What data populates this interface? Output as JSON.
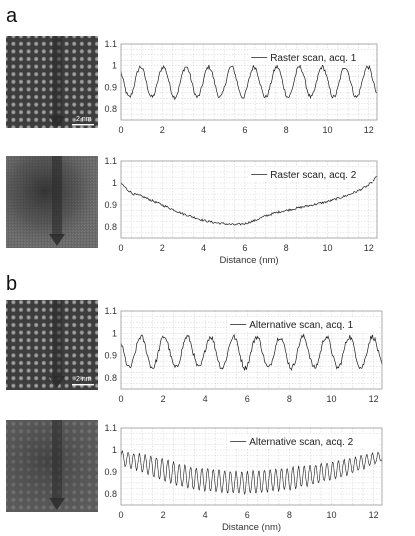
{
  "panels": [
    {
      "label": "a"
    },
    {
      "label": "b"
    }
  ],
  "scale_bar": {
    "label": "2 nm"
  },
  "chart_data": [
    {
      "type": "line",
      "panel": "a",
      "legend": "Raster scan, acq. 1",
      "legend_placement": "top-right",
      "xlim": [
        0,
        12.4
      ],
      "ylim": [
        0.75,
        1.1
      ],
      "xticks": [
        0,
        2,
        4,
        6,
        8,
        10,
        12
      ],
      "yticks": [
        0.8,
        0.9,
        1,
        1.1
      ],
      "xlabel": "",
      "grid": true,
      "pattern": "periodic",
      "mean": 0.925,
      "amplitude": 0.07,
      "period": 1.1,
      "phase": 0.95,
      "noise": 0.01
    },
    {
      "type": "line",
      "panel": "a",
      "legend": "Raster scan, acq. 2",
      "legend_placement": "top-right",
      "xlim": [
        0,
        12.4
      ],
      "ylim": [
        0.75,
        1.1
      ],
      "xticks": [
        0,
        2,
        4,
        6,
        8,
        10,
        12
      ],
      "yticks": [
        0.8,
        0.9,
        1,
        1.1
      ],
      "xlabel": "Distance (nm)",
      "grid": true,
      "pattern": "trend",
      "noise": 0.005,
      "x": [
        0,
        0.3,
        0.6,
        1,
        1.5,
        2,
        2.5,
        3,
        3.5,
        4,
        4.5,
        5,
        5.5,
        6,
        6.5,
        7,
        7.5,
        8,
        8.5,
        9,
        9.5,
        10,
        10.5,
        11,
        11.5,
        12,
        12.4
      ],
      "y": [
        1.0,
        0.97,
        0.95,
        0.94,
        0.92,
        0.9,
        0.88,
        0.86,
        0.845,
        0.83,
        0.82,
        0.815,
        0.81,
        0.815,
        0.83,
        0.85,
        0.865,
        0.875,
        0.885,
        0.895,
        0.905,
        0.915,
        0.93,
        0.945,
        0.965,
        0.99,
        1.03
      ]
    },
    {
      "type": "line",
      "panel": "b",
      "legend": "Alternative scan, acq. 1",
      "legend_placement": "top-right",
      "xlim": [
        0,
        12.4
      ],
      "ylim": [
        0.75,
        1.1
      ],
      "xticks": [
        0,
        2,
        4,
        6,
        8,
        10,
        12
      ],
      "yticks": [
        0.8,
        0.9,
        1,
        1.1
      ],
      "xlabel": "",
      "grid": true,
      "pattern": "periodic",
      "mean": 0.915,
      "amplitude": 0.07,
      "period": 1.1,
      "phase": 0.95,
      "noise": 0.012
    },
    {
      "type": "line",
      "panel": "b",
      "legend": "Alternative scan, acq. 2",
      "legend_placement": "top-right",
      "xlim": [
        0,
        12.4
      ],
      "ylim": [
        0.75,
        1.1
      ],
      "xticks": [
        0,
        2,
        4,
        6,
        8,
        10,
        12
      ],
      "yticks": [
        0.8,
        0.9,
        1,
        1.1
      ],
      "xlabel": "Distance (nm)",
      "grid": true,
      "pattern": "oscillating-trend",
      "noise": 0.004,
      "x": [
        0,
        0.5,
        1,
        1.5,
        2,
        2.5,
        3,
        3.5,
        4,
        4.5,
        5,
        5.5,
        6,
        6.5,
        7,
        7.5,
        8,
        8.5,
        9,
        9.5,
        10,
        10.5,
        11,
        11.5,
        12,
        12.4
      ],
      "y": [
        0.965,
        0.95,
        0.94,
        0.925,
        0.91,
        0.895,
        0.88,
        0.87,
        0.865,
        0.86,
        0.855,
        0.852,
        0.852,
        0.855,
        0.86,
        0.865,
        0.87,
        0.878,
        0.885,
        0.895,
        0.905,
        0.915,
        0.93,
        0.945,
        0.96,
        0.97
      ],
      "oscillation_amplitude": [
        0.03,
        0.035,
        0.04,
        0.045,
        0.05,
        0.05,
        0.05,
        0.05,
        0.05,
        0.05,
        0.05,
        0.05,
        0.05,
        0.05,
        0.05,
        0.05,
        0.05,
        0.048,
        0.045,
        0.042,
        0.04,
        0.038,
        0.035,
        0.03,
        0.025,
        0.02
      ],
      "oscillation_period": 0.27
    }
  ],
  "images": [
    {
      "panel": "a",
      "name": "raster-acq-1",
      "contrast": "lattice"
    },
    {
      "panel": "a",
      "name": "raster-acq-2",
      "contrast": "dark-blob"
    },
    {
      "panel": "b",
      "name": "alternative-acq-1",
      "contrast": "lattice"
    },
    {
      "panel": "b",
      "name": "alternative-acq-2",
      "contrast": "faint-lattice"
    }
  ]
}
